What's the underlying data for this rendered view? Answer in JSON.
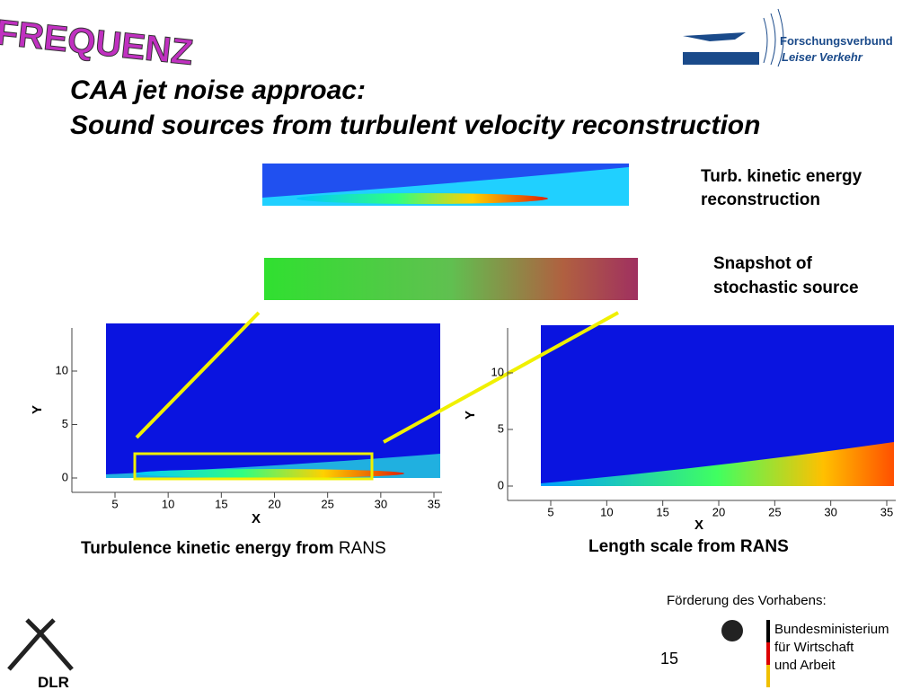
{
  "header": {
    "logo": "FREQUENZ",
    "org_line1": "Forschungsverbund",
    "org_line2": "Leiser Verkehr"
  },
  "title": {
    "line1": "CAA jet noise approac:",
    "line2": "Sound sources from turbulent velocity reconstruction"
  },
  "annotations": {
    "tke_line1": "Turb. kinetic energy",
    "tke_line2": "reconstruction",
    "snap_line1": "Snapshot of",
    "snap_line2": "stochastic source"
  },
  "plots": [
    {
      "xlabel": "X",
      "ylabel": "Y",
      "xticks": [
        5,
        10,
        15,
        20,
        25,
        30,
        35
      ],
      "yticks": [
        0,
        5,
        10
      ],
      "caption": "Turbulence kinetic energy from",
      "caption_suffix": "RANS"
    },
    {
      "xlabel": "X",
      "ylabel": "Y",
      "xticks": [
        5,
        10,
        15,
        20,
        25,
        30,
        35
      ],
      "yticks": [
        0,
        5,
        10
      ],
      "caption": "Length scale from RANS"
    }
  ],
  "footer": {
    "funding": "Förderung des Vorhabens:",
    "ministry_line1": "Bundesministerium",
    "ministry_line2": "für Wirtschaft",
    "ministry_line3": "und Arbeit",
    "page": "15",
    "dlr": "DLR"
  }
}
